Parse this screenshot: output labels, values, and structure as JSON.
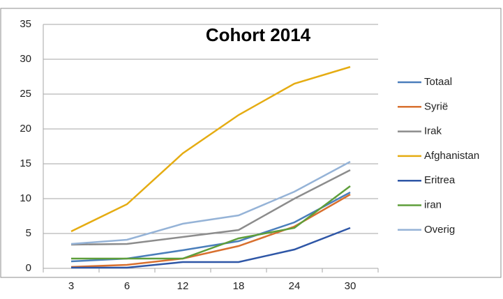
{
  "chart_data": {
    "type": "line",
    "title": "Cohort 2014",
    "categories": [
      "3",
      "6",
      "12",
      "18",
      "24",
      "30"
    ],
    "series": [
      {
        "name": "Totaal",
        "color": "#4a7ebb",
        "values": [
          1.0,
          1.4,
          2.6,
          3.9,
          6.6,
          10.9
        ]
      },
      {
        "name": "Syrië",
        "color": "#d8702f",
        "values": [
          0.2,
          0.5,
          1.4,
          3.2,
          6.0,
          10.6
        ]
      },
      {
        "name": "Irak",
        "color": "#8c8c8c",
        "values": [
          3.4,
          3.5,
          4.5,
          5.5,
          10.0,
          14.1
        ]
      },
      {
        "name": "Afghanistan",
        "color": "#e5ac12",
        "values": [
          5.3,
          9.2,
          16.5,
          22.0,
          26.5,
          28.9
        ]
      },
      {
        "name": "Eritrea",
        "color": "#2e56a6",
        "values": [
          0.1,
          0.1,
          0.9,
          0.9,
          2.7,
          5.8
        ]
      },
      {
        "name": "iran",
        "color": "#5e9e3a",
        "values": [
          1.4,
          1.4,
          1.4,
          4.3,
          5.8,
          11.8
        ]
      },
      {
        "name": "Overig",
        "color": "#95b3d7",
        "values": [
          3.5,
          4.1,
          6.4,
          7.6,
          11.0,
          15.3
        ]
      }
    ],
    "ylim": [
      0,
      35
    ],
    "yticks": [
      0,
      5,
      10,
      15,
      20,
      25,
      30,
      35
    ],
    "grid": true,
    "legend": "right"
  }
}
